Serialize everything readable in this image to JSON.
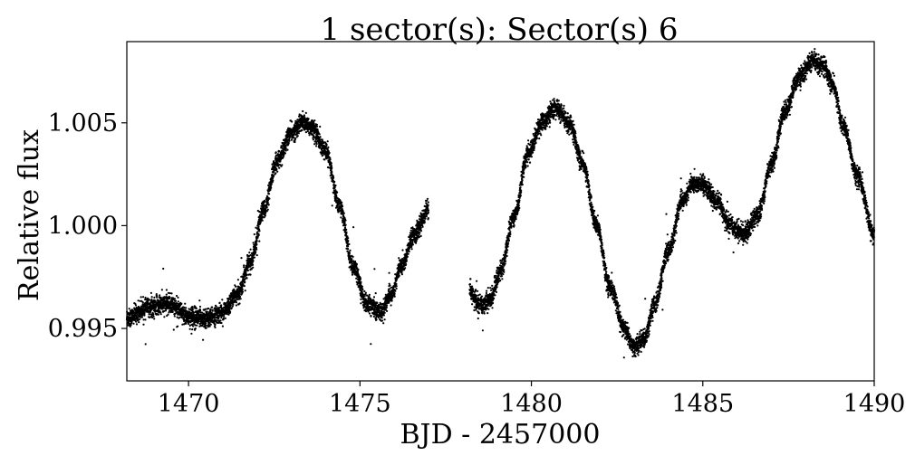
{
  "chart_data": {
    "type": "scatter",
    "title": "1 sector(s): Sector(s) 6",
    "xlabel": "BJD - 2457000",
    "ylabel": "Relative flux",
    "xlim": [
      1468.2,
      1490.0
    ],
    "ylim": [
      0.99245,
      1.00895
    ],
    "xticks": [
      1470,
      1475,
      1480,
      1485,
      1490
    ],
    "xtick_labels": [
      "1470",
      "1475",
      "1480",
      "1485",
      "1490"
    ],
    "yticks": [
      0.995,
      1.0,
      1.005
    ],
    "ytick_labels": [
      "0.995",
      "1.000",
      "1.005"
    ],
    "grid": false,
    "legend": "none",
    "marker_color": "#000000",
    "gap": [
      1477.0,
      1478.2
    ],
    "series": [
      {
        "x": [
          1468.2,
          1468.8,
          1469.4,
          1470.0,
          1470.6,
          1471.0,
          1471.4,
          1471.8,
          1472.2,
          1472.6,
          1473.0,
          1473.3,
          1473.6,
          1474.0,
          1474.4,
          1474.8,
          1475.2,
          1475.6,
          1475.9,
          1476.2,
          1476.6,
          1477.0
        ],
        "y": [
          0.9955,
          0.996,
          0.9962,
          0.9956,
          0.9955,
          0.9958,
          0.9966,
          0.9982,
          1.0008,
          1.0032,
          1.0045,
          1.005,
          1.0048,
          1.0036,
          1.001,
          0.998,
          0.9962,
          0.9958,
          0.9966,
          0.998,
          0.9996,
          1.0008
        ]
      },
      {
        "x": [
          1478.2,
          1478.5,
          1478.8,
          1479.1,
          1479.5,
          1479.9,
          1480.3,
          1480.7,
          1481.1,
          1481.5,
          1481.9,
          1482.3,
          1482.7,
          1483.0,
          1483.3,
          1483.6,
          1484.0,
          1484.4,
          1484.7,
          1485.0,
          1485.4,
          1485.8,
          1486.2,
          1486.6,
          1487.0,
          1487.4,
          1487.8,
          1488.2,
          1488.5,
          1488.8,
          1489.1,
          1489.5,
          1490.0
        ],
        "y": [
          0.9968,
          0.9961,
          0.9964,
          0.9978,
          1.0005,
          1.0035,
          1.005,
          1.0057,
          1.005,
          1.003,
          1.0,
          0.997,
          0.995,
          0.9941,
          0.9945,
          0.9962,
          0.9988,
          1.0012,
          1.002,
          1.002,
          1.0012,
          1.0,
          0.9996,
          1.0005,
          1.003,
          1.0056,
          1.0072,
          1.008,
          1.0078,
          1.0068,
          1.0048,
          1.0025,
          0.9995
        ]
      }
    ]
  }
}
